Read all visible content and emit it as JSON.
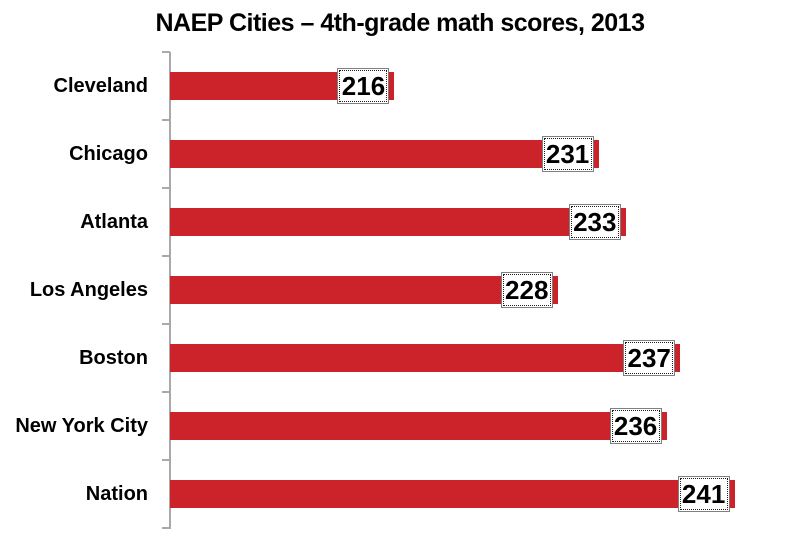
{
  "chart_data": {
    "type": "bar",
    "orientation": "horizontal",
    "title": "NAEP Cities – 4th-grade math scores, 2013",
    "categories": [
      "Cleveland",
      "Chicago",
      "Atlanta",
      "Los Angeles",
      "Boston",
      "New York City",
      "Nation"
    ],
    "values": [
      216,
      231,
      233,
      228,
      237,
      236,
      241
    ],
    "xlabel": "",
    "ylabel": "",
    "xlim": [
      199.5,
      243.6
    ],
    "grid": false,
    "legend": "none",
    "data_labels": true,
    "colors": {
      "bar": "#CC2229",
      "axis": "#A9A9A9",
      "label_box_bg": "#FFFFFF",
      "label_box_border": "#7F7F7F",
      "text": "#000000"
    }
  }
}
